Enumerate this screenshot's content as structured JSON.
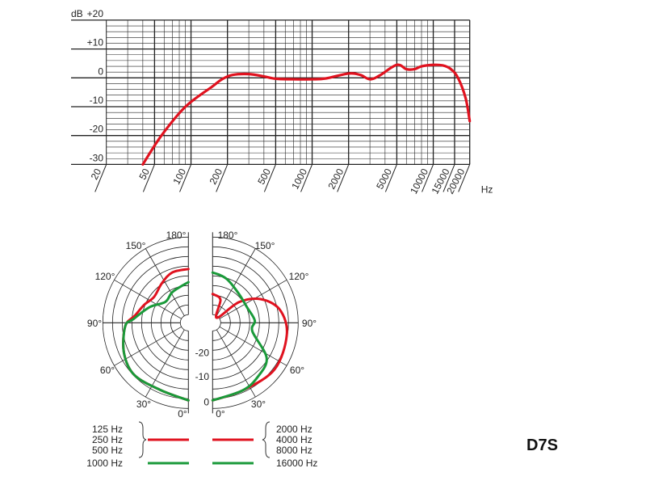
{
  "model_label": "D7S",
  "colors": {
    "red": "#e0121f",
    "green": "#1a9a3a",
    "grid": "#222222"
  },
  "chart_data": [
    {
      "type": "line",
      "title": "",
      "xlabel": "Hz",
      "ylabel": "dB",
      "xscale": "log",
      "xlim": [
        20,
        20000
      ],
      "ylim": [
        -30,
        20
      ],
      "grid": true,
      "x_ticks": [
        "20",
        "50",
        "100",
        "200",
        "500",
        "1000",
        "2000",
        "5000",
        "10000",
        "15000",
        "20000"
      ],
      "x_tick_values": [
        20,
        50,
        100,
        200,
        500,
        1000,
        2000,
        5000,
        10000,
        15000,
        20000
      ],
      "y_ticks": [
        "+20",
        "+10",
        "0",
        "-10",
        "-20",
        "-30"
      ],
      "y_tick_values": [
        20,
        10,
        0,
        -10,
        -20,
        -30
      ],
      "series": [
        {
          "color": "#e0121f",
          "points": [
            [
              40,
              -30
            ],
            [
              57,
              -20
            ],
            [
              90,
              -10
            ],
            [
              150,
              -3
            ],
            [
              180,
              -0.5
            ],
            [
              220,
              1
            ],
            [
              300,
              1.3
            ],
            [
              400,
              0.5
            ],
            [
              500,
              -0.3
            ],
            [
              700,
              -0.5
            ],
            [
              1000,
              -0.5
            ],
            [
              1300,
              -0.2
            ],
            [
              2000,
              1.5
            ],
            [
              2500,
              1
            ],
            [
              3000,
              -0.5
            ],
            [
              3600,
              0.8
            ],
            [
              5000,
              4.5
            ],
            [
              6000,
              3
            ],
            [
              7000,
              3
            ],
            [
              8000,
              4
            ],
            [
              10000,
              4.5
            ],
            [
              12000,
              4.3
            ],
            [
              14000,
              3
            ],
            [
              16000,
              0
            ],
            [
              18500,
              -7
            ],
            [
              20000,
              -15
            ]
          ]
        }
      ]
    },
    {
      "type": "polar",
      "angle_ticks_left": [
        "180°",
        "150°",
        "120°",
        "90°",
        "60°",
        "30°",
        "0°"
      ],
      "angle_ticks_right": [
        "180°",
        "150°",
        "120°",
        "90°",
        "60°",
        "30°",
        "0°"
      ],
      "radial_ticks": [
        "-20",
        "-10",
        "0"
      ],
      "radial_tick_values": [
        -20,
        -10,
        0
      ],
      "rlim": [
        -30,
        0
      ],
      "series": [
        {
          "side": "left",
          "color": "#e0121f",
          "labels": [
            "125 Hz",
            "250 Hz",
            "500 Hz"
          ],
          "points": [
            [
              0,
              0
            ],
            [
              22,
              -2
            ],
            [
              46,
              -1
            ],
            [
              65,
              -2.7
            ],
            [
              87,
              -6
            ],
            [
              98,
              -10
            ],
            [
              112,
              -12.5
            ],
            [
              127,
              -14.5
            ],
            [
              146,
              -12.6
            ],
            [
              162,
              -10.4
            ],
            [
              180,
              -10
            ]
          ]
        },
        {
          "side": "left",
          "color": "#1a9a3a",
          "labels": [
            "1000 Hz"
          ],
          "points": [
            [
              0,
              0
            ],
            [
              22,
              -2
            ],
            [
              46,
              -1
            ],
            [
              65,
              -2.7
            ],
            [
              87,
              -6
            ],
            [
              94,
              -9.5
            ],
            [
              112,
              -15
            ],
            [
              132,
              -19.5
            ],
            [
              153,
              -18
            ],
            [
              180,
              -15.5
            ]
          ]
        },
        {
          "side": "right",
          "color": "#e0121f",
          "labels": [
            "2000 Hz",
            "4000 Hz",
            "8000 Hz"
          ],
          "points": [
            [
              0,
              0
            ],
            [
              24,
              -1.5
            ],
            [
              53,
              0
            ],
            [
              81,
              -1
            ],
            [
              101,
              -3.8
            ],
            [
              116,
              -10
            ],
            [
              128,
              -18.5
            ],
            [
              140,
              -30
            ],
            [
              161,
              -22.4
            ],
            [
              177,
              -20.7
            ],
            [
              180,
              -20.5
            ]
          ]
        },
        {
          "side": "right",
          "color": "#1a9a3a",
          "labels": [
            "16000 Hz"
          ],
          "points": [
            [
              0,
              0
            ],
            [
              24,
              -1.5
            ],
            [
              40,
              -3
            ],
            [
              57,
              -5.5
            ],
            [
              78,
              -15.5
            ],
            [
              93,
              -14.8
            ],
            [
              114,
              -16.7
            ],
            [
              137,
              -16.2
            ],
            [
              159,
              -13.7
            ],
            [
              170,
              -12.4
            ],
            [
              180,
              -11.5
            ]
          ]
        }
      ],
      "legend": {
        "left": {
          "labels": [
            "125 Hz",
            "250 Hz",
            "500 Hz",
            "1000 Hz"
          ]
        },
        "right": {
          "labels": [
            "2000 Hz",
            "4000 Hz",
            "8000 Hz",
            "16000 Hz"
          ]
        }
      }
    }
  ]
}
